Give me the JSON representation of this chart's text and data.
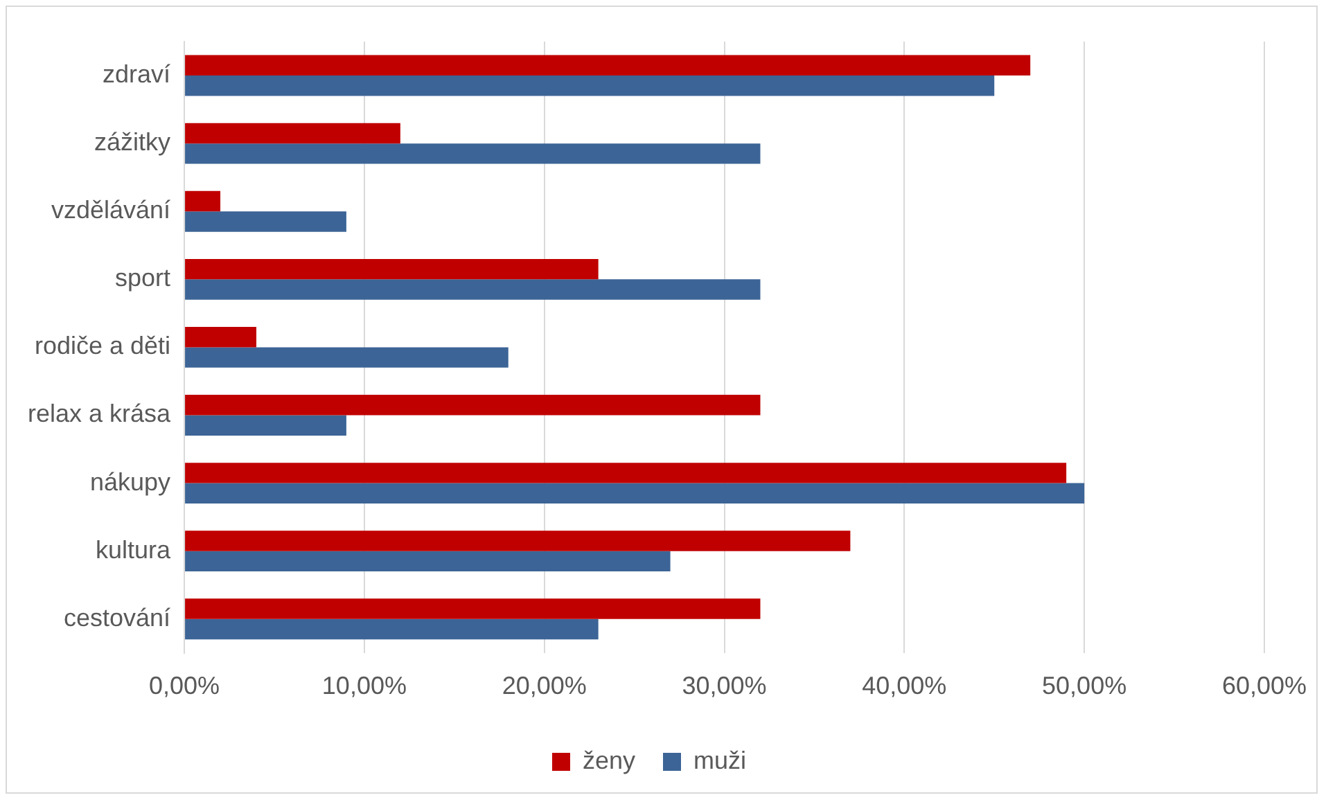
{
  "chart_data": {
    "type": "bar",
    "orientation": "horizontal",
    "categories": [
      "zdraví",
      "zážitky",
      "vzdělávání",
      "sport",
      "rodiče a děti",
      "relax a krása",
      "nákupy",
      "kultura",
      "cestování"
    ],
    "series": [
      {
        "name": "ženy",
        "color": "#c00000",
        "values": [
          47,
          12,
          2,
          23,
          4,
          32,
          49,
          37,
          32
        ]
      },
      {
        "name": "muži",
        "color": "#3c6496",
        "values": [
          45,
          32,
          9,
          32,
          18,
          9,
          50,
          27,
          23
        ]
      }
    ],
    "xlim": [
      0,
      60
    ],
    "xticks": [
      {
        "value": 0,
        "label": "0,00%"
      },
      {
        "value": 10,
        "label": "10,00%"
      },
      {
        "value": 20,
        "label": "20,00%"
      },
      {
        "value": 30,
        "label": "30,00%"
      },
      {
        "value": 40,
        "label": "40,00%"
      },
      {
        "value": 50,
        "label": "50,00%"
      },
      {
        "value": 60,
        "label": "60,00%"
      }
    ],
    "grid": "x",
    "legend": "bottom"
  }
}
